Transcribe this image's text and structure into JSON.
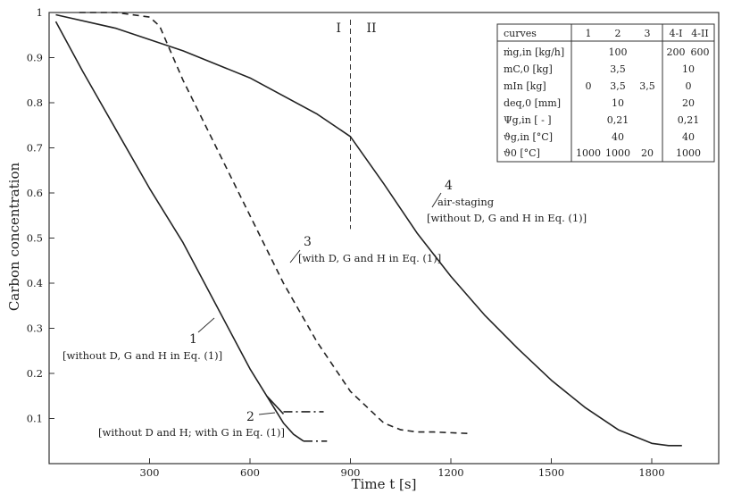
{
  "chart_data": {
    "type": "line",
    "title": "",
    "xlabel": "Time t [s]",
    "ylabel": "Carbon concentration",
    "xlim": [
      0,
      2000
    ],
    "ylim": [
      0,
      1
    ],
    "x_ticks": [
      300,
      600,
      900,
      1200,
      1500,
      1800
    ],
    "x_tick_labels": [
      "300",
      "600",
      "900",
      "1200",
      "1500",
      "1800"
    ],
    "y_ticks": [
      0.1,
      0.2,
      0.3,
      0.4,
      0.5,
      0.6,
      0.7,
      0.8,
      0.9,
      1
    ],
    "y_tick_labels": [
      "0.1",
      "0.2",
      "0.3",
      "0.4",
      "0.5",
      "0.6",
      "0.7",
      "0.8",
      "0.9",
      "1"
    ],
    "grid": false,
    "vline": {
      "x": 900,
      "label_left": "I",
      "label_right": "II"
    },
    "series": [
      {
        "name": "1",
        "style": "solid",
        "x": [
          20,
          100,
          200,
          300,
          400,
          500,
          600,
          650,
          700
        ],
        "y": [
          0.98,
          0.87,
          0.74,
          0.61,
          0.49,
          0.35,
          0.21,
          0.15,
          0.11
        ]
      },
      {
        "name": "1-ext",
        "style": "dashdot",
        "x": [
          700,
          820
        ],
        "y": [
          0.115,
          0.115
        ]
      },
      {
        "name": "2",
        "style": "solid",
        "x": [
          650,
          700,
          730,
          760
        ],
        "y": [
          0.15,
          0.09,
          0.065,
          0.05
        ]
      },
      {
        "name": "2-ext",
        "style": "dashdot",
        "x": [
          760,
          830
        ],
        "y": [
          0.05,
          0.05
        ]
      },
      {
        "name": "3",
        "style": "dashed",
        "x": [
          90,
          200,
          300,
          330,
          400,
          500,
          600,
          700,
          800,
          900,
          1000,
          1050,
          1100,
          1150,
          1250
        ],
        "y": [
          1.0,
          1.0,
          0.99,
          0.97,
          0.85,
          0.7,
          0.55,
          0.4,
          0.27,
          0.16,
          0.09,
          0.075,
          0.07,
          0.07,
          0.067
        ]
      },
      {
        "name": "4",
        "style": "solid",
        "x": [
          20,
          200,
          400,
          600,
          800,
          900,
          1000,
          1100,
          1200,
          1300,
          1400,
          1500,
          1600,
          1700,
          1800,
          1850,
          1890
        ],
        "y": [
          0.995,
          0.965,
          0.915,
          0.855,
          0.775,
          0.725,
          0.62,
          0.51,
          0.415,
          0.33,
          0.255,
          0.185,
          0.125,
          0.075,
          0.045,
          0.04,
          0.04
        ]
      }
    ],
    "annotations": [
      {
        "id": "curve-1",
        "number": "1",
        "text": "[without D, G and H in Eq. (1)]",
        "at": [
          500,
          0.3
        ]
      },
      {
        "id": "curve-2",
        "number": "2",
        "text": "[without D and H; with G in Eq. (1)]",
        "at": [
          700,
          0.105
        ]
      },
      {
        "id": "curve-3",
        "number": "3",
        "text": "[with D, G and H in Eq. (1)]",
        "at": [
          980,
          0.47
        ]
      },
      {
        "id": "curve-4",
        "number": "4",
        "text": "air-staging",
        "text2": "[without D, G and H in Eq. (1)]",
        "at": [
          1090,
          0.58
        ]
      }
    ],
    "legend_table": {
      "placement": "top-right",
      "header": [
        "curves",
        "1",
        "2",
        "3",
        "4-I",
        "4-II"
      ],
      "rows": [
        {
          "label": "ṁg,in [kg/h]",
          "cells": [
            "",
            "100",
            "",
            "200",
            "600"
          ]
        },
        {
          "label": "mC,0 [kg]",
          "cells": [
            "",
            "3,5",
            "",
            "10",
            ""
          ]
        },
        {
          "label": "mIn [kg]",
          "cells": [
            "0",
            "3,5",
            "3,5",
            "0",
            ""
          ]
        },
        {
          "label": "deq,0 [mm]",
          "cells": [
            "",
            "10",
            "",
            "20",
            ""
          ]
        },
        {
          "label": "Ψg,in [ - ]",
          "cells": [
            "",
            "0,21",
            "",
            "0,21",
            ""
          ]
        },
        {
          "label": "ϑg,in [°C]",
          "cells": [
            "",
            "40",
            "",
            "40",
            ""
          ]
        },
        {
          "label": "ϑ0 [°C]",
          "cells": [
            "1000",
            "1000",
            "20",
            "1000",
            ""
          ]
        }
      ]
    }
  }
}
